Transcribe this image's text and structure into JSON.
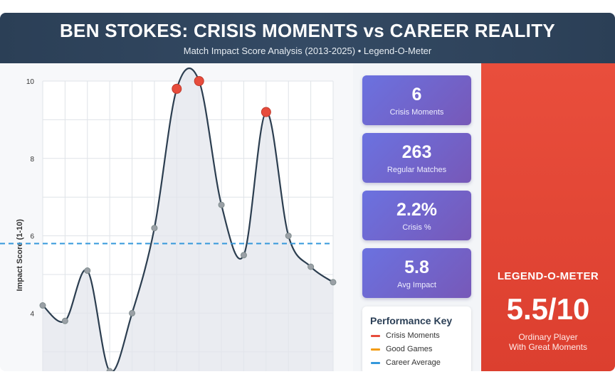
{
  "header": {
    "title": "BEN STOKES: CRISIS MOMENTS vs CAREER REALITY",
    "subtitle": "Match Impact Score Analysis (2013-2025) • Legend-O-Meter"
  },
  "stats": [
    {
      "value": "6",
      "label": "Crisis Moments"
    },
    {
      "value": "263",
      "label": "Regular Matches"
    },
    {
      "value": "2.2%",
      "label": "Crisis %"
    },
    {
      "value": "5.8",
      "label": "Avg Impact"
    }
  ],
  "key": {
    "title": "Performance Key",
    "items": [
      {
        "label": "Crisis Moments",
        "color": "#e74c3c"
      },
      {
        "label": "Good Games",
        "color": "#f39c12"
      },
      {
        "label": "Career Average",
        "color": "#3498db"
      }
    ]
  },
  "legend_o_meter": {
    "title": "LEGEND-O-METER",
    "score": "5.5/10",
    "line1": "Ordinary Player",
    "line2": "With Great Moments"
  },
  "colors": {
    "line": "#2c3e50",
    "fill": "#e3e6ec",
    "regular_point": "#9aa0a6",
    "crisis_point": "#e74c3c",
    "average_line": "#3498db"
  },
  "chart_data": {
    "type": "line",
    "ylabel": "Impact Score (1-10)",
    "xlabel": "",
    "ylim": [
      2.5,
      10
    ],
    "yticks": [
      4,
      6,
      8,
      10
    ],
    "x": [
      1,
      2,
      3,
      4,
      5,
      6,
      7,
      8,
      9,
      10,
      11,
      12,
      13,
      14
    ],
    "values": [
      4.2,
      3.8,
      5.1,
      2.5,
      4.0,
      6.2,
      9.8,
      10.0,
      6.8,
      5.5,
      9.2,
      6.0,
      5.2,
      4.8
    ],
    "crisis_indices": [
      6,
      7,
      10
    ],
    "average": 5.8,
    "grid": true
  }
}
